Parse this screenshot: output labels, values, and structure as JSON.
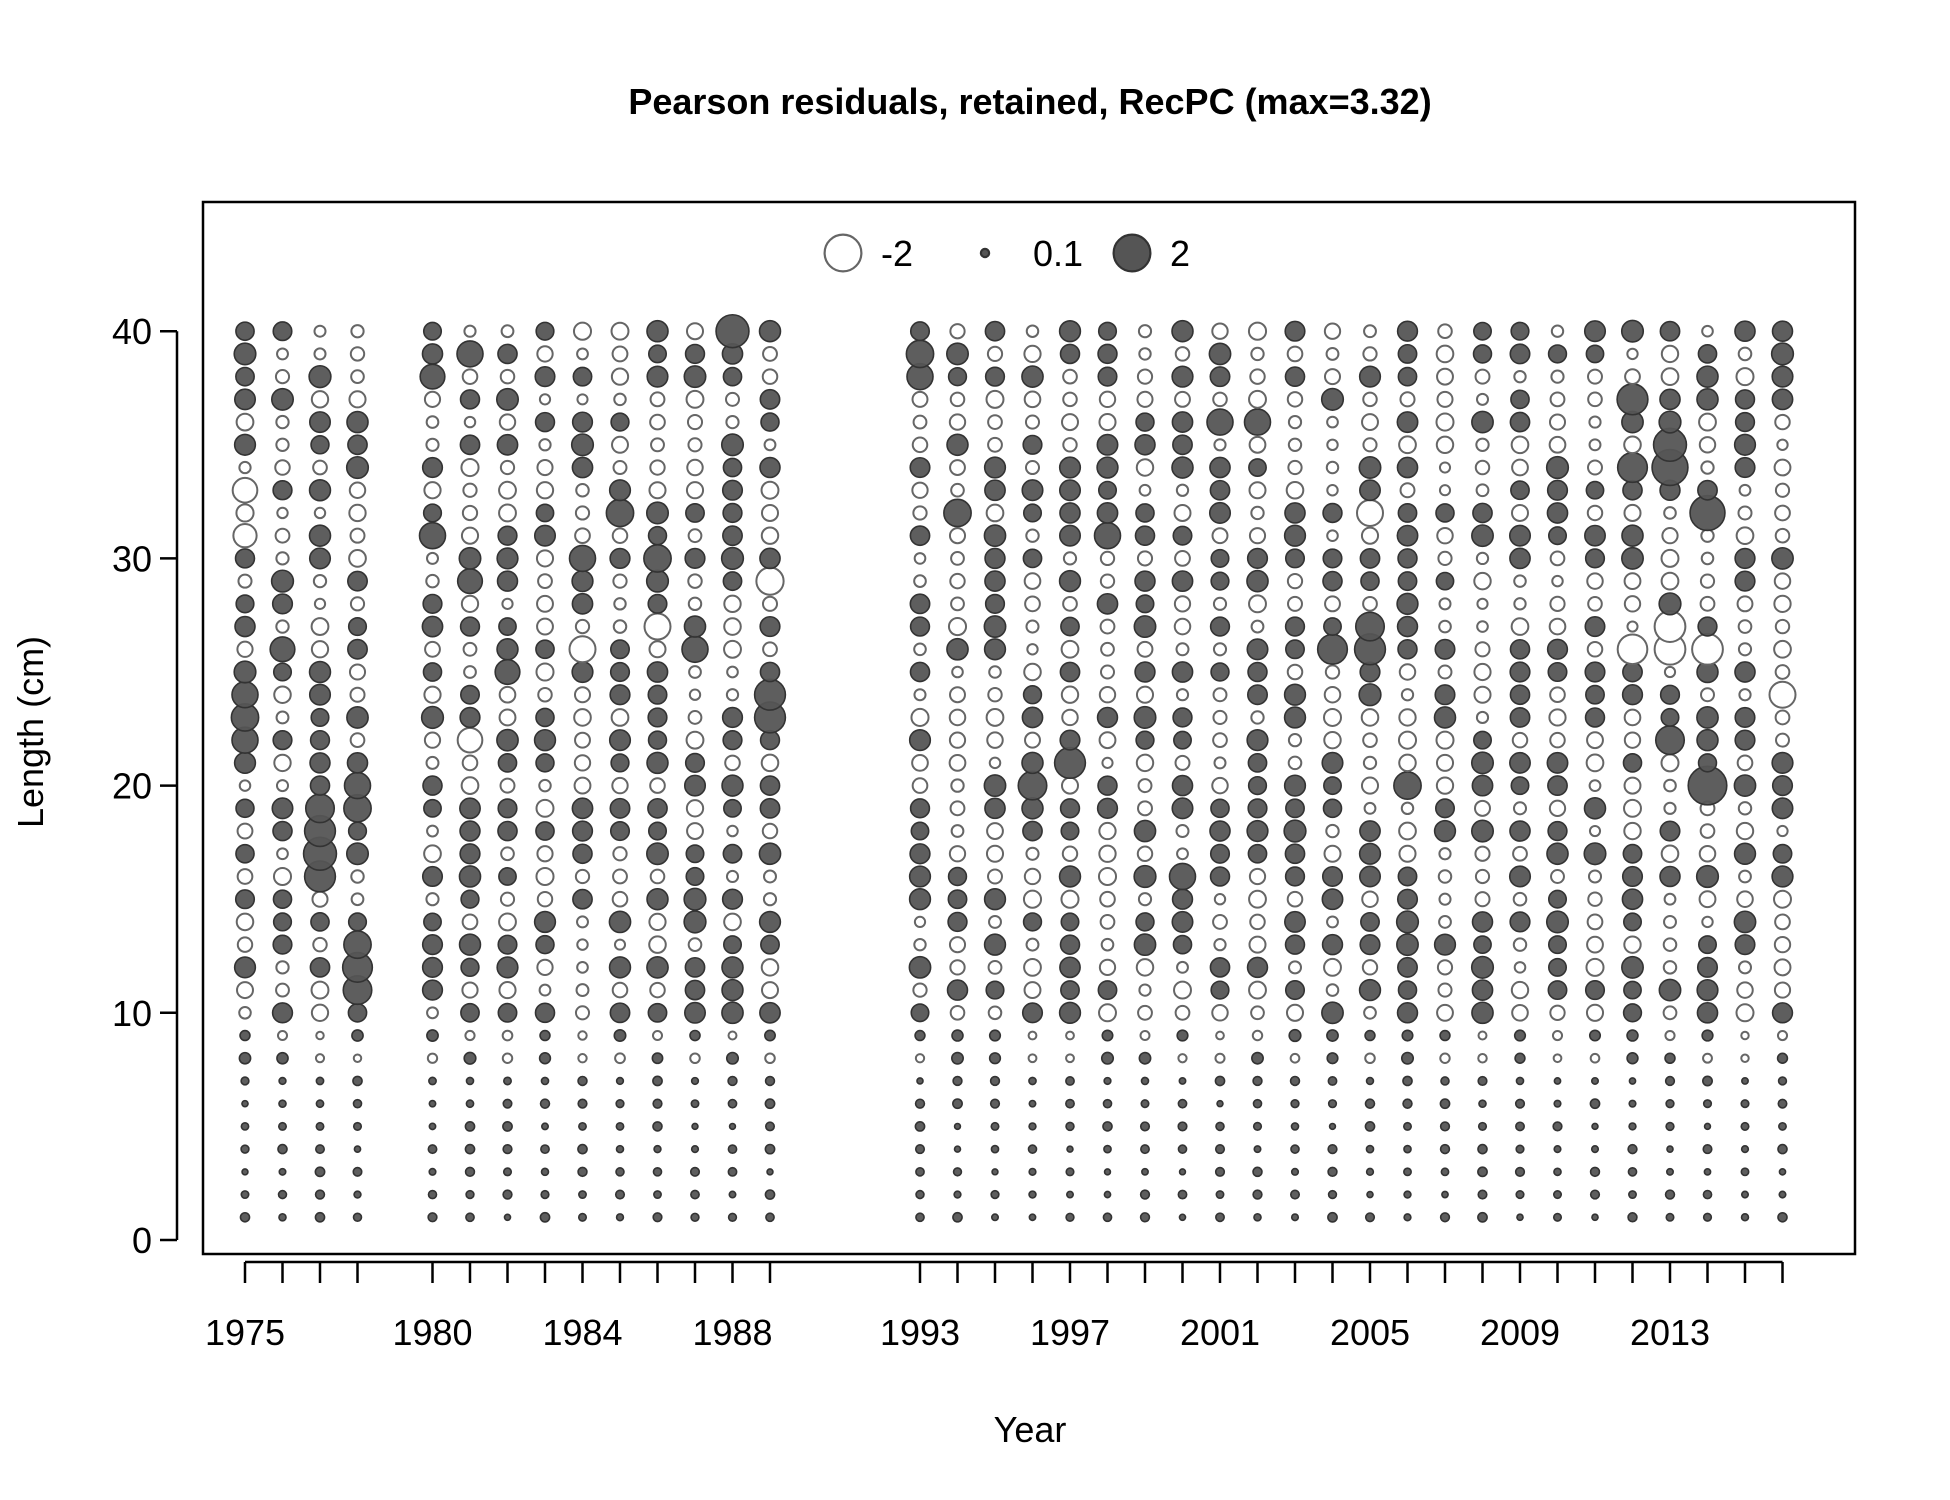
{
  "chart_data": {
    "type": "scatter",
    "subtype": "bubble",
    "title": "Pearson residuals, retained, RecPC (max=3.32)",
    "xlabel": "Year",
    "ylabel": "Length (cm)",
    "x_tick_labels": [
      "1975",
      "1980",
      "1984",
      "1988",
      "1993",
      "1997",
      "2001",
      "2005",
      "2009",
      "2013"
    ],
    "x_tick_positions": [
      1975,
      1980,
      1984,
      1988,
      1993,
      1997,
      2001,
      2005,
      2009,
      2013
    ],
    "y_ticks": [
      0,
      10,
      20,
      30,
      40
    ],
    "ylim": [
      0,
      40
    ],
    "grid": false,
    "legend": {
      "placement": "top-center",
      "entries": [
        {
          "label": "-2",
          "value": -2,
          "filled": false
        },
        {
          "label": "0.1",
          "value": 0.1,
          "filled": true
        },
        {
          "label": "2",
          "value": 2,
          "filled": true
        }
      ]
    },
    "max_residual": 3.32,
    "years": [
      1975,
      1976,
      1977,
      1978,
      1980,
      1981,
      1982,
      1983,
      1984,
      1985,
      1986,
      1987,
      1988,
      1989,
      1993,
      1994,
      1995,
      1996,
      1997,
      1998,
      1999,
      2000,
      2001,
      2002,
      2003,
      2004,
      2005,
      2006,
      2007,
      2008,
      2009,
      2010,
      2011,
      2012,
      2013,
      2014,
      2015,
      2016
    ],
    "length_bins": {
      "from": 1,
      "to": 40,
      "step": 1
    },
    "colors": {
      "positive_fill": "#555555",
      "stroke": "#333333",
      "negative_stroke": "#666666"
    },
    "notable_residuals": [
      {
        "year": 1975,
        "length": 23,
        "value": 1.1
      },
      {
        "year": 1975,
        "length": 24,
        "value": 1.0
      },
      {
        "year": 1975,
        "length": 22,
        "value": 1.0
      },
      {
        "year": 1975,
        "length": 33,
        "value": -0.9
      },
      {
        "year": 1975,
        "length": 31,
        "value": -0.8
      },
      {
        "year": 1976,
        "length": 26,
        "value": 0.9
      },
      {
        "year": 1976,
        "length": 29,
        "value": 0.7
      },
      {
        "year": 1977,
        "length": 17,
        "value": 1.6
      },
      {
        "year": 1977,
        "length": 18,
        "value": 1.4
      },
      {
        "year": 1977,
        "length": 16,
        "value": 1.4
      },
      {
        "year": 1977,
        "length": 19,
        "value": 1.2
      },
      {
        "year": 1978,
        "length": 12,
        "value": 1.3
      },
      {
        "year": 1978,
        "length": 11,
        "value": 1.2
      },
      {
        "year": 1978,
        "length": 13,
        "value": 1.1
      },
      {
        "year": 1978,
        "length": 19,
        "value": 1.1
      },
      {
        "year": 1978,
        "length": 20,
        "value": 1.0
      },
      {
        "year": 1980,
        "length": 31,
        "value": 1.0
      },
      {
        "year": 1980,
        "length": 38,
        "value": 0.9
      },
      {
        "year": 1981,
        "length": 39,
        "value": 1.0
      },
      {
        "year": 1981,
        "length": 29,
        "value": 0.9
      },
      {
        "year": 1981,
        "length": 22,
        "value": -0.9
      },
      {
        "year": 1982,
        "length": 25,
        "value": 0.9
      },
      {
        "year": 1984,
        "length": 30,
        "value": 1.0
      },
      {
        "year": 1984,
        "length": 26,
        "value": -1.0
      },
      {
        "year": 1985,
        "length": 32,
        "value": 1.1
      },
      {
        "year": 1986,
        "length": 30,
        "value": 1.1
      },
      {
        "year": 1986,
        "length": 27,
        "value": -1.0
      },
      {
        "year": 1987,
        "length": 26,
        "value": 1.0
      },
      {
        "year": 1988,
        "length": 40,
        "value": 1.6
      },
      {
        "year": 1989,
        "length": 24,
        "value": 1.4
      },
      {
        "year": 1989,
        "length": 23,
        "value": 1.4
      },
      {
        "year": 1989,
        "length": 29,
        "value": -1.1
      },
      {
        "year": 1993,
        "length": 39,
        "value": 1.1
      },
      {
        "year": 1993,
        "length": 38,
        "value": 1.0
      },
      {
        "year": 1994,
        "length": 32,
        "value": 1.1
      },
      {
        "year": 1997,
        "length": 21,
        "value": 1.4
      },
      {
        "year": 1996,
        "length": 20,
        "value": 1.2
      },
      {
        "year": 1998,
        "length": 31,
        "value": 1.0
      },
      {
        "year": 2000,
        "length": 16,
        "value": 1.0
      },
      {
        "year": 2001,
        "length": 36,
        "value": 1.0
      },
      {
        "year": 2002,
        "length": 36,
        "value": 1.0
      },
      {
        "year": 2004,
        "length": 26,
        "value": 1.3
      },
      {
        "year": 2005,
        "length": 26,
        "value": 1.4
      },
      {
        "year": 2005,
        "length": 27,
        "value": 1.2
      },
      {
        "year": 2005,
        "length": 32,
        "value": -1.0
      },
      {
        "year": 2006,
        "length": 20,
        "value": 1.1
      },
      {
        "year": 2012,
        "length": 37,
        "value": 1.4
      },
      {
        "year": 2012,
        "length": 34,
        "value": 1.3
      },
      {
        "year": 2012,
        "length": 26,
        "value": -1.3
      },
      {
        "year": 2013,
        "length": 34,
        "value": 1.9
      },
      {
        "year": 2013,
        "length": 35,
        "value": 1.6
      },
      {
        "year": 2013,
        "length": 27,
        "value": -1.4
      },
      {
        "year": 2013,
        "length": 26,
        "value": -1.4
      },
      {
        "year": 2013,
        "length": 22,
        "value": 1.2
      },
      {
        "year": 2014,
        "length": 20,
        "value": 2.2
      },
      {
        "year": 2014,
        "length": 32,
        "value": 1.8
      },
      {
        "year": 2014,
        "length": 26,
        "value": -1.4
      },
      {
        "year": 2016,
        "length": 24,
        "value": -1.0
      }
    ]
  }
}
